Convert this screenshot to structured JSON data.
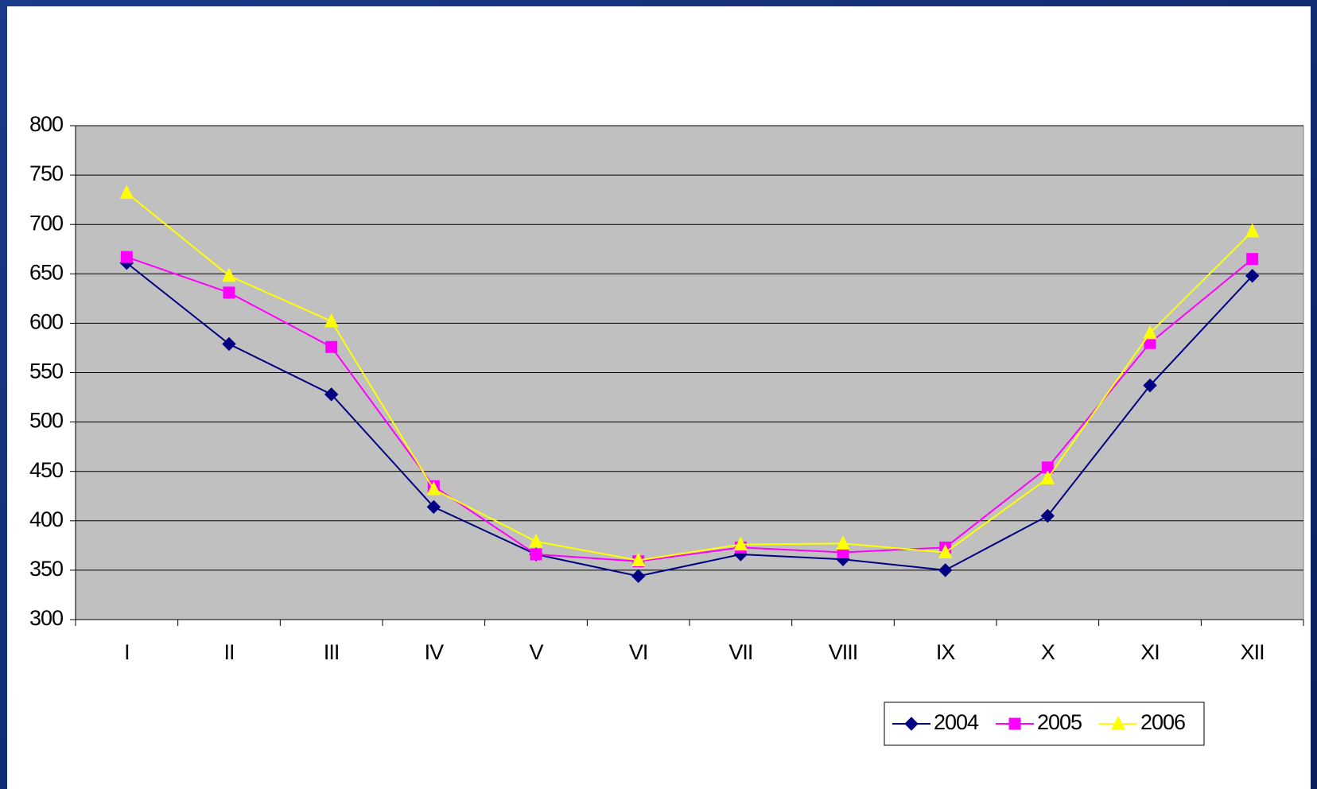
{
  "chart_data": {
    "type": "line",
    "categories": [
      "I",
      "II",
      "III",
      "IV",
      "V",
      "VI",
      "VII",
      "VIII",
      "IX",
      "X",
      "XI",
      "XII"
    ],
    "series": [
      {
        "name": "2004",
        "color": "#000080",
        "marker": "diamond",
        "values": [
          661,
          579,
          528,
          414,
          366,
          344,
          366,
          361,
          350,
          405,
          537,
          648
        ]
      },
      {
        "name": "2005",
        "color": "#ff00ff",
        "marker": "square",
        "values": [
          667,
          631,
          576,
          435,
          366,
          359,
          373,
          368,
          373,
          454,
          580,
          665
        ]
      },
      {
        "name": "2006",
        "color": "#ffff00",
        "marker": "triangle",
        "values": [
          732,
          648,
          602,
          432,
          379,
          360,
          376,
          377,
          368,
          443,
          590,
          693
        ]
      }
    ],
    "ylim": [
      300,
      800
    ],
    "yticks": [
      300,
      350,
      400,
      450,
      500,
      550,
      600,
      650,
      700,
      750,
      800
    ],
    "grid": true,
    "legend": "bottom-right"
  }
}
